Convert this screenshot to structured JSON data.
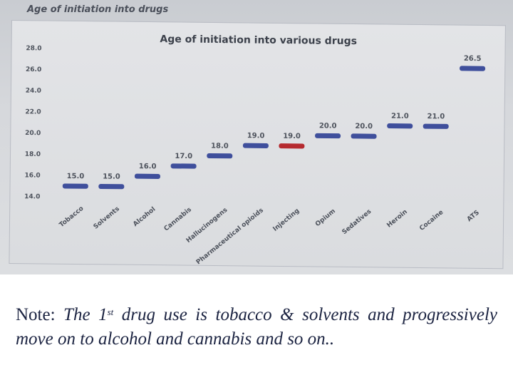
{
  "photo": {
    "heading": "Age of initiation into drugs"
  },
  "chart_data": {
    "type": "scatter",
    "title": "Age of initiation into various drugs",
    "xlabel": "",
    "ylabel": "",
    "ylim": [
      14.0,
      28.0
    ],
    "yticks": [
      "14.0",
      "16.0",
      "18.0",
      "20.0",
      "22.0",
      "24.0",
      "26.0",
      "28.0"
    ],
    "grid": false,
    "legend": "none",
    "categories": [
      "Tobacco",
      "Solvents",
      "Alcohol",
      "Cannabis",
      "Hallucinogens",
      "Pharmaceutical opioids",
      "Injecting",
      "Opium",
      "Sedatives",
      "Heroin",
      "Cocaine",
      "ATS"
    ],
    "values": [
      15.0,
      15.0,
      16.0,
      17.0,
      18.0,
      19.0,
      19.0,
      20.0,
      20.0,
      21.0,
      21.0,
      26.5
    ],
    "value_labels": [
      "15.0",
      "15.0",
      "16.0",
      "17.0",
      "18.0",
      "19.0",
      "19.0",
      "20.0",
      "20.0",
      "21.0",
      "21.0",
      "26.5"
    ],
    "colors": {
      "default": "#3f4f9c",
      "highlight": "#b52a2f",
      "highlight_category": "Injecting"
    }
  },
  "note": {
    "prefix": "Note:",
    "part1": " The 1",
    "sup": "st",
    "part2": " drug use is tobacco & solvents and progressively move on to alcohol and cannabis and so on.."
  }
}
